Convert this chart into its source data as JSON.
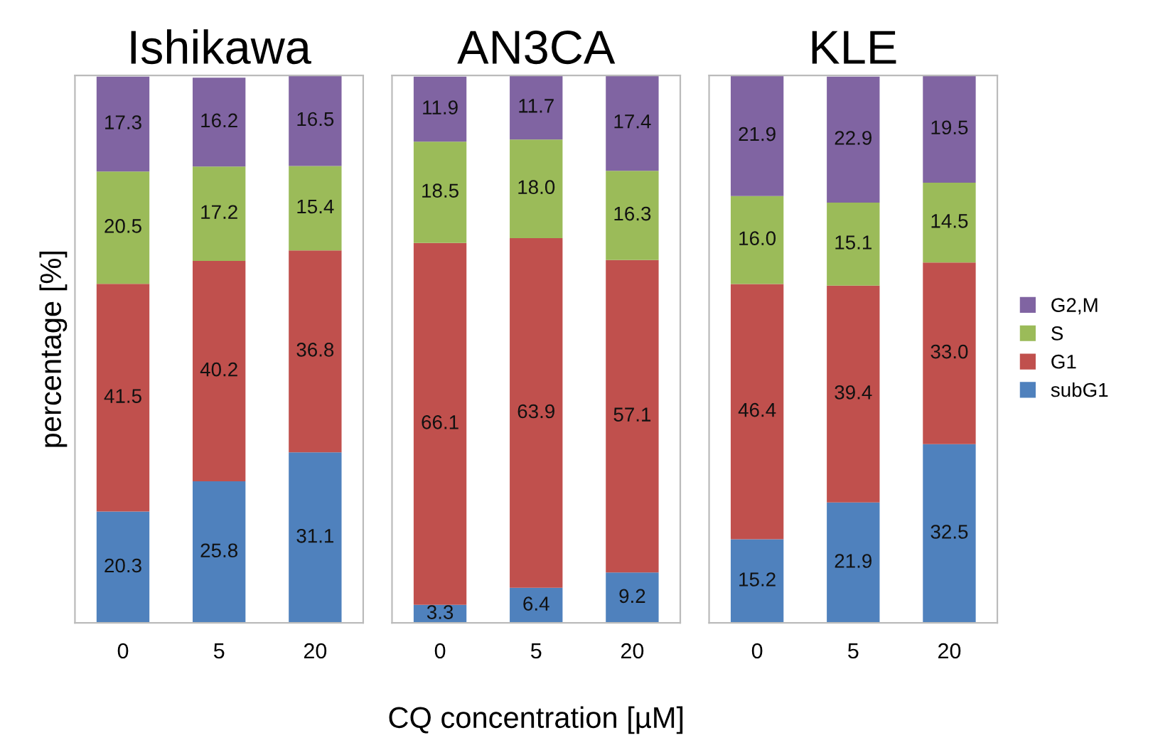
{
  "chart_data": [
    {
      "type": "bar",
      "title": "Ishikawa",
      "ylabel": "percentage [%]",
      "categories": [
        "0",
        "5",
        "20"
      ],
      "stacked": true,
      "tick_labels": "x",
      "series": [
        {
          "color": "#4f81bd",
          "values": [
            20.3,
            25.8,
            31.1
          ],
          "value_labels": [
            "20.3",
            "25.8",
            "31.1"
          ]
        },
        {
          "color": "#c0504d",
          "values": [
            41.5,
            40.2,
            36.8
          ],
          "value_labels": [
            "41.5",
            "40.2",
            "36.8"
          ]
        },
        {
          "color": "#9bbb59",
          "values": [
            20.5,
            17.2,
            15.4
          ],
          "value_labels": [
            "20.5",
            "17.2",
            "15.4"
          ]
        },
        {
          "color": "#8064a2",
          "values": [
            17.3,
            16.2,
            16.5
          ],
          "value_labels": [
            "17.3",
            "16.2",
            "16.5"
          ]
        }
      ]
    },
    {
      "type": "bar",
      "title": "AN3CA",
      "xlabel": "CQ concentration [µM]",
      "categories": [
        "0",
        "5",
        "20"
      ],
      "stacked": true,
      "tick_labels": "x",
      "series": [
        {
          "color": "#4f81bd",
          "values": [
            3.3,
            6.4,
            9.2
          ],
          "value_labels": [
            "3.3",
            "6.4",
            "9.2"
          ]
        },
        {
          "color": "#c0504d",
          "values": [
            66.1,
            63.9,
            57.1
          ],
          "value_labels": [
            "66.1",
            "63.9",
            "57.1"
          ]
        },
        {
          "color": "#9bbb59",
          "values": [
            18.5,
            18.0,
            16.3
          ],
          "value_labels": [
            "18.5",
            "18.0",
            "16.3"
          ]
        },
        {
          "color": "#8064a2",
          "values": [
            11.9,
            11.7,
            17.4
          ],
          "value_labels": [
            "11.9",
            "11.7",
            "17.4"
          ]
        }
      ]
    },
    {
      "type": "bar",
      "title": "KLE",
      "categories": [
        "0",
        "5",
        "20"
      ],
      "stacked": true,
      "tick_labels": "x",
      "legend": "right",
      "series": [
        {
          "name": "subG1",
          "color": "#4f81bd",
          "values": [
            15.2,
            21.9,
            32.5
          ],
          "value_labels": [
            "15.2",
            "21.9",
            "32.5"
          ]
        },
        {
          "name": "G1",
          "color": "#c0504d",
          "values": [
            46.4,
            39.4,
            33.0
          ],
          "value_labels": [
            "46.4",
            "39.4",
            "33.0"
          ]
        },
        {
          "name": "S",
          "color": "#9bbb59",
          "values": [
            16.0,
            15.1,
            14.5
          ],
          "value_labels": [
            "16.0",
            "15.1",
            "14.5"
          ]
        },
        {
          "name": "G2,M",
          "color": "#8064a2",
          "values": [
            21.9,
            22.9,
            19.5
          ],
          "value_labels": [
            "21.9",
            "22.9",
            "19.5"
          ]
        }
      ]
    }
  ]
}
